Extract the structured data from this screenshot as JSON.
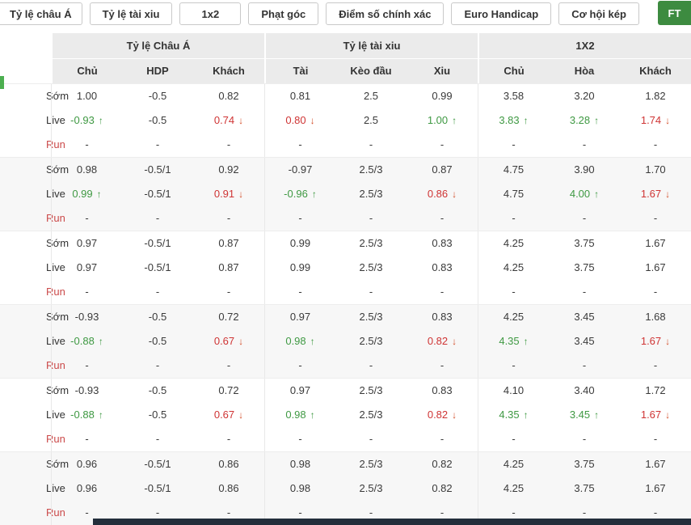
{
  "tabs": [
    "Tỷ lệ châu Á",
    "Tỷ lệ tài xiu",
    "1x2",
    "Phạt góc",
    "Điểm số chính xác",
    "Euro Handicap",
    "Cơ hội kép"
  ],
  "ft_button_label": "FT",
  "colors": {
    "up_green": "#3f9943",
    "down_red": "#cf3434",
    "down_arrow": "#d4502c",
    "run_label": "#cb4a4a",
    "header_bg": "#ebebeb",
    "alt_block_bg": "#f7f7f7",
    "ft_green": "#3d8b40",
    "marker_green": "#4caf50",
    "bottom_bar": "#232e3b"
  },
  "table": {
    "groups": [
      "Tỷ lệ Châu Á",
      "Tỷ lệ tài xiu",
      "1X2"
    ],
    "subheaders": [
      "Chủ",
      "HDP",
      "Khách",
      "Tài",
      "Kèo đầu",
      "Xiu",
      "Chủ",
      "Hòa",
      "Khách"
    ],
    "blocks": [
      {
        "rows": [
          {
            "label": "Sớm",
            "type": "som",
            "cells": [
              [
                "1.00",
                ""
              ],
              [
                "-0.5",
                ""
              ],
              [
                "0.82",
                ""
              ],
              [
                "0.81",
                ""
              ],
              [
                "2.5",
                ""
              ],
              [
                "0.99",
                ""
              ],
              [
                "3.58",
                ""
              ],
              [
                "3.20",
                ""
              ],
              [
                "1.82",
                ""
              ]
            ]
          },
          {
            "label": "Live",
            "type": "live",
            "cells": [
              [
                "-0.93",
                "up"
              ],
              [
                "-0.5",
                ""
              ],
              [
                "0.74",
                "down"
              ],
              [
                "0.80",
                "down"
              ],
              [
                "2.5",
                ""
              ],
              [
                "1.00",
                "up"
              ],
              [
                "3.83",
                "up"
              ],
              [
                "3.28",
                "up"
              ],
              [
                "1.74",
                "down"
              ]
            ]
          },
          {
            "label": "Run",
            "type": "run",
            "cells": [
              [
                "-",
                ""
              ],
              [
                "-",
                ""
              ],
              [
                "-",
                ""
              ],
              [
                "-",
                ""
              ],
              [
                "-",
                ""
              ],
              [
                "-",
                ""
              ],
              [
                "-",
                ""
              ],
              [
                "-",
                ""
              ],
              [
                "-",
                ""
              ]
            ]
          }
        ]
      },
      {
        "rows": [
          {
            "label": "Sớm",
            "type": "som",
            "cells": [
              [
                "0.98",
                ""
              ],
              [
                "-0.5/1",
                ""
              ],
              [
                "0.92",
                ""
              ],
              [
                "-0.97",
                ""
              ],
              [
                "2.5/3",
                ""
              ],
              [
                "0.87",
                ""
              ],
              [
                "4.75",
                ""
              ],
              [
                "3.90",
                ""
              ],
              [
                "1.70",
                ""
              ]
            ]
          },
          {
            "label": "Live",
            "type": "live",
            "cells": [
              [
                "0.99",
                "up"
              ],
              [
                "-0.5/1",
                ""
              ],
              [
                "0.91",
                "down"
              ],
              [
                "-0.96",
                "up"
              ],
              [
                "2.5/3",
                ""
              ],
              [
                "0.86",
                "down"
              ],
              [
                "4.75",
                ""
              ],
              [
                "4.00",
                "up"
              ],
              [
                "1.67",
                "down"
              ]
            ]
          },
          {
            "label": "Run",
            "type": "run",
            "cells": [
              [
                "-",
                ""
              ],
              [
                "-",
                ""
              ],
              [
                "-",
                ""
              ],
              [
                "-",
                ""
              ],
              [
                "-",
                ""
              ],
              [
                "-",
                ""
              ],
              [
                "-",
                ""
              ],
              [
                "-",
                ""
              ],
              [
                "-",
                ""
              ]
            ]
          }
        ]
      },
      {
        "rows": [
          {
            "label": "Sớm",
            "type": "som",
            "cells": [
              [
                "0.97",
                ""
              ],
              [
                "-0.5/1",
                ""
              ],
              [
                "0.87",
                ""
              ],
              [
                "0.99",
                ""
              ],
              [
                "2.5/3",
                ""
              ],
              [
                "0.83",
                ""
              ],
              [
                "4.25",
                ""
              ],
              [
                "3.75",
                ""
              ],
              [
                "1.67",
                ""
              ]
            ]
          },
          {
            "label": "Live",
            "type": "live",
            "cells": [
              [
                "0.97",
                ""
              ],
              [
                "-0.5/1",
                ""
              ],
              [
                "0.87",
                ""
              ],
              [
                "0.99",
                ""
              ],
              [
                "2.5/3",
                ""
              ],
              [
                "0.83",
                ""
              ],
              [
                "4.25",
                ""
              ],
              [
                "3.75",
                ""
              ],
              [
                "1.67",
                ""
              ]
            ]
          },
          {
            "label": "Run",
            "type": "run",
            "cells": [
              [
                "-",
                ""
              ],
              [
                "-",
                ""
              ],
              [
                "-",
                ""
              ],
              [
                "-",
                ""
              ],
              [
                "-",
                ""
              ],
              [
                "-",
                ""
              ],
              [
                "-",
                ""
              ],
              [
                "-",
                ""
              ],
              [
                "-",
                ""
              ]
            ]
          }
        ]
      },
      {
        "rows": [
          {
            "label": "Sớm",
            "type": "som",
            "cells": [
              [
                "-0.93",
                ""
              ],
              [
                "-0.5",
                ""
              ],
              [
                "0.72",
                ""
              ],
              [
                "0.97",
                ""
              ],
              [
                "2.5/3",
                ""
              ],
              [
                "0.83",
                ""
              ],
              [
                "4.25",
                ""
              ],
              [
                "3.45",
                ""
              ],
              [
                "1.68",
                ""
              ]
            ]
          },
          {
            "label": "Live",
            "type": "live",
            "cells": [
              [
                "-0.88",
                "up"
              ],
              [
                "-0.5",
                ""
              ],
              [
                "0.67",
                "down"
              ],
              [
                "0.98",
                "up"
              ],
              [
                "2.5/3",
                ""
              ],
              [
                "0.82",
                "down"
              ],
              [
                "4.35",
                "up"
              ],
              [
                "3.45",
                ""
              ],
              [
                "1.67",
                "down"
              ]
            ]
          },
          {
            "label": "Run",
            "type": "run",
            "cells": [
              [
                "-",
                ""
              ],
              [
                "-",
                ""
              ],
              [
                "-",
                ""
              ],
              [
                "-",
                ""
              ],
              [
                "-",
                ""
              ],
              [
                "-",
                ""
              ],
              [
                "-",
                ""
              ],
              [
                "-",
                ""
              ],
              [
                "-",
                ""
              ]
            ]
          }
        ]
      },
      {
        "rows": [
          {
            "label": "Sớm",
            "type": "som",
            "cells": [
              [
                "-0.93",
                ""
              ],
              [
                "-0.5",
                ""
              ],
              [
                "0.72",
                ""
              ],
              [
                "0.97",
                ""
              ],
              [
                "2.5/3",
                ""
              ],
              [
                "0.83",
                ""
              ],
              [
                "4.10",
                ""
              ],
              [
                "3.40",
                ""
              ],
              [
                "1.72",
                ""
              ]
            ]
          },
          {
            "label": "Live",
            "type": "live",
            "cells": [
              [
                "-0.88",
                "up"
              ],
              [
                "-0.5",
                ""
              ],
              [
                "0.67",
                "down"
              ],
              [
                "0.98",
                "up"
              ],
              [
                "2.5/3",
                ""
              ],
              [
                "0.82",
                "down"
              ],
              [
                "4.35",
                "up"
              ],
              [
                "3.45",
                "up"
              ],
              [
                "1.67",
                "down"
              ]
            ]
          },
          {
            "label": "Run",
            "type": "run",
            "cells": [
              [
                "-",
                ""
              ],
              [
                "-",
                ""
              ],
              [
                "-",
                ""
              ],
              [
                "-",
                ""
              ],
              [
                "-",
                ""
              ],
              [
                "-",
                ""
              ],
              [
                "-",
                ""
              ],
              [
                "-",
                ""
              ],
              [
                "-",
                ""
              ]
            ]
          }
        ]
      },
      {
        "rows": [
          {
            "label": "Sớm",
            "type": "som",
            "cells": [
              [
                "0.96",
                ""
              ],
              [
                "-0.5/1",
                ""
              ],
              [
                "0.86",
                ""
              ],
              [
                "0.98",
                ""
              ],
              [
                "2.5/3",
                ""
              ],
              [
                "0.82",
                ""
              ],
              [
                "4.25",
                ""
              ],
              [
                "3.75",
                ""
              ],
              [
                "1.67",
                ""
              ]
            ]
          },
          {
            "label": "Live",
            "type": "live",
            "cells": [
              [
                "0.96",
                ""
              ],
              [
                "-0.5/1",
                ""
              ],
              [
                "0.86",
                ""
              ],
              [
                "0.98",
                ""
              ],
              [
                "2.5/3",
                ""
              ],
              [
                "0.82",
                ""
              ],
              [
                "4.25",
                ""
              ],
              [
                "3.75",
                ""
              ],
              [
                "1.67",
                ""
              ]
            ]
          },
          {
            "label": "Run",
            "type": "run",
            "cells": [
              [
                "-",
                ""
              ],
              [
                "-",
                ""
              ],
              [
                "-",
                ""
              ],
              [
                "-",
                ""
              ],
              [
                "-",
                ""
              ],
              [
                "-",
                ""
              ],
              [
                "-",
                ""
              ],
              [
                "-",
                ""
              ],
              [
                "-",
                ""
              ]
            ]
          }
        ]
      }
    ]
  }
}
